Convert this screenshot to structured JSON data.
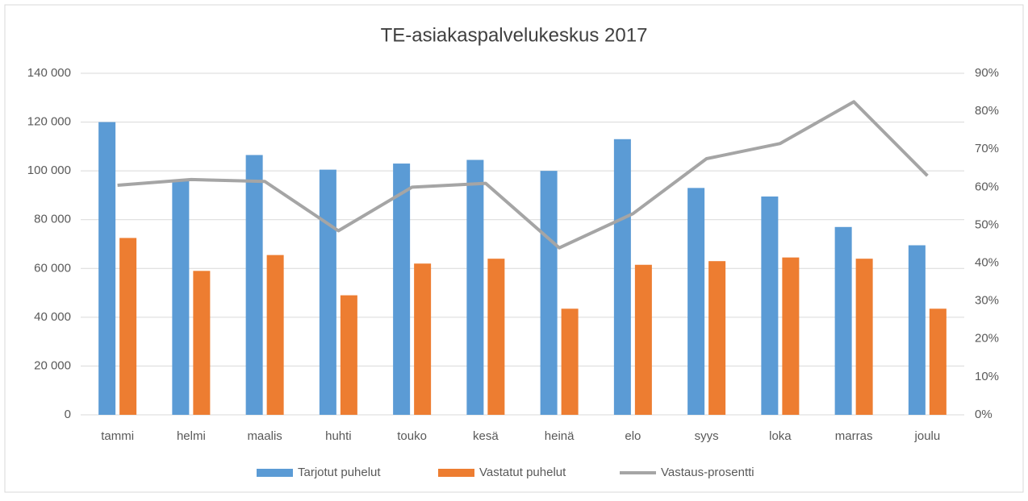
{
  "chart_data": {
    "type": "bar",
    "title": "TE-asiakaspalvelukeskus 2017",
    "categories": [
      "tammi",
      "helmi",
      "maalis",
      "huhti",
      "touko",
      "kesä",
      "heinä",
      "elo",
      "syys",
      "loka",
      "marras",
      "joulu"
    ],
    "series": [
      {
        "name": "Tarjotut puhelut",
        "color": "#5b9bd5",
        "values": [
          120000,
          96000,
          106500,
          100500,
          103000,
          104500,
          100000,
          113000,
          93000,
          89500,
          77000,
          69500
        ]
      },
      {
        "name": "Vastatut puhelut",
        "color": "#ed7d31",
        "values": [
          72500,
          59000,
          65500,
          49000,
          62000,
          64000,
          43500,
          61500,
          63000,
          64500,
          64000,
          43500
        ]
      },
      {
        "name": "Vastaus-prosentti",
        "color": "#a5a5a5",
        "type": "line",
        "axis": "y2",
        "values": [
          60.5,
          62,
          61.5,
          48.5,
          60,
          61,
          44,
          53,
          67.5,
          71.5,
          82.5,
          63
        ]
      }
    ],
    "ylim": [
      0,
      140000
    ],
    "yticks": [
      0,
      {
        "value": 20000,
        "label": "20 000"
      },
      {
        "value": 40000,
        "label": "40 000"
      },
      {
        "value": 60000,
        "label": "60 000"
      },
      {
        "value": 80000,
        "label": "80 000"
      },
      {
        "value": 100000,
        "label": "100 000"
      },
      {
        "value": 120000,
        "label": "120 000"
      },
      {
        "value": 140000,
        "label": "140 000"
      }
    ],
    "y2lim": [
      0,
      90
    ],
    "y2ticks": [
      {
        "value": 0,
        "label": "0%"
      },
      {
        "value": 10,
        "label": "10%"
      },
      {
        "value": 20,
        "label": "20%"
      },
      {
        "value": 30,
        "label": "30%"
      },
      {
        "value": 40,
        "label": "40%"
      },
      {
        "value": 50,
        "label": "50%"
      },
      {
        "value": 60,
        "label": "60%"
      },
      {
        "value": 70,
        "label": "70%"
      },
      {
        "value": 80,
        "label": "80%"
      },
      {
        "value": 90,
        "label": "90%"
      }
    ],
    "grid": true,
    "legend": "bottom"
  }
}
